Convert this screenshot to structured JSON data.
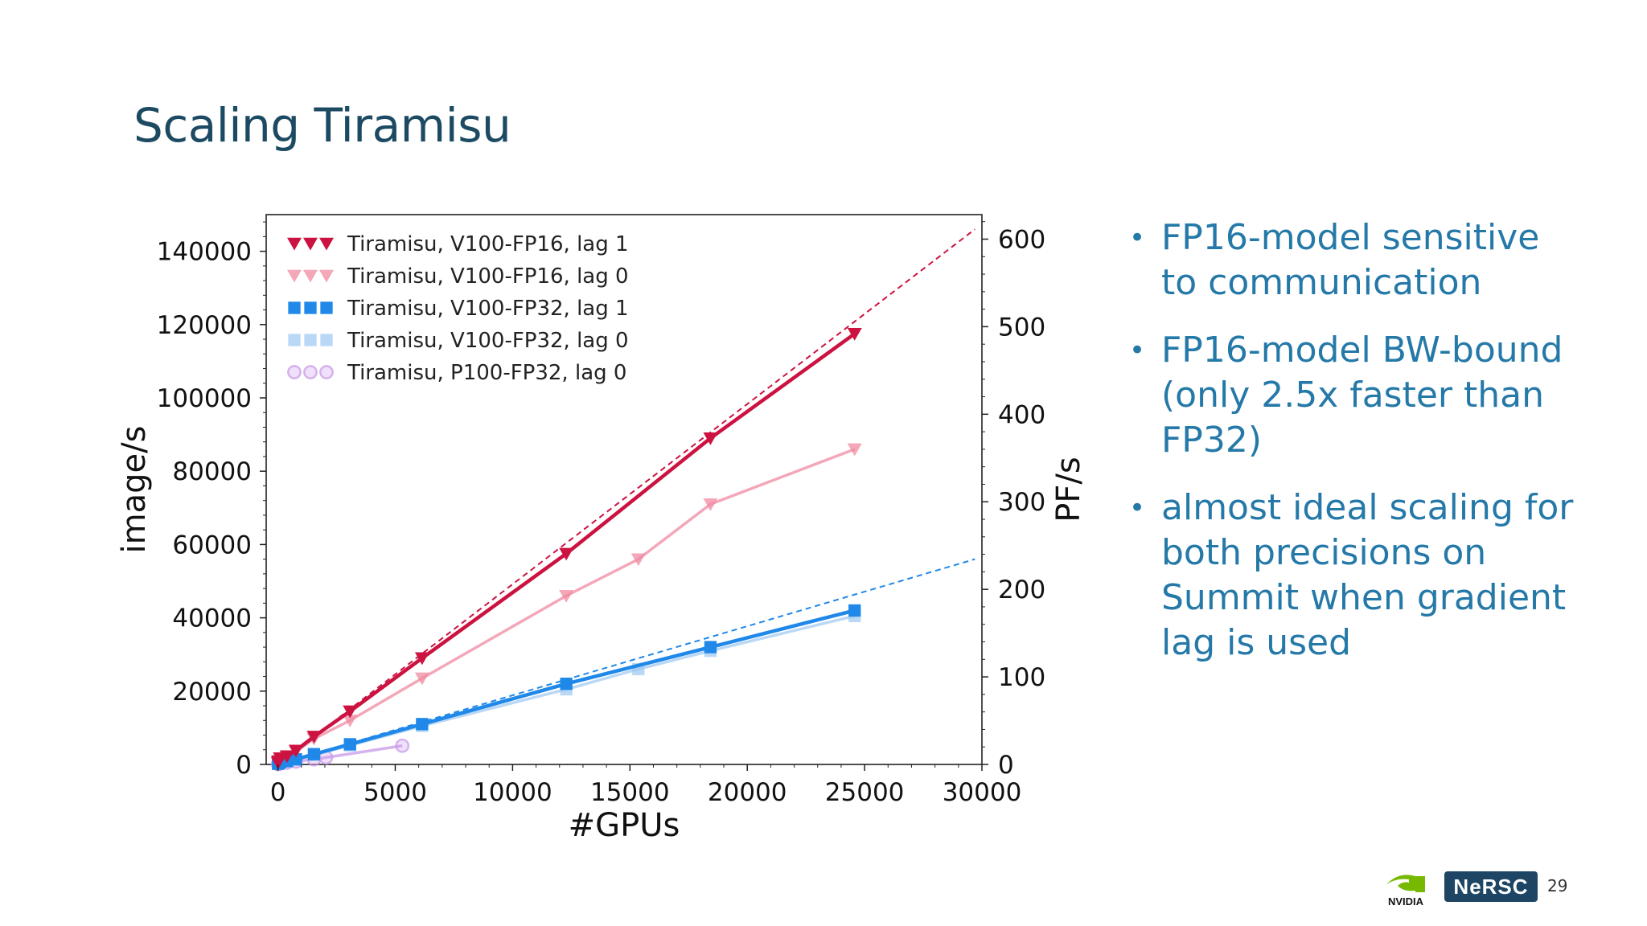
{
  "slide": {
    "title": "Scaling Tiramisu",
    "bullets": [
      "FP16-model sensitive to communication",
      "FP16-model BW-bound (only 2.5x faster than FP32)",
      "almost ideal scaling for both precisions on Summit when gradient lag is used"
    ],
    "page_number": "29",
    "logos": {
      "nvidia": "NVIDIA",
      "nersc": "NeRSC"
    }
  },
  "chart_data": {
    "type": "line",
    "xlabel": "#GPUs",
    "ylabel": "image/s",
    "y2label": "PF/s",
    "xlim": [
      -500,
      30000
    ],
    "ylim": [
      0,
      150000
    ],
    "y2lim": [
      0,
      628
    ],
    "xticks": [
      0,
      5000,
      10000,
      15000,
      20000,
      25000,
      30000
    ],
    "yticks": [
      0,
      20000,
      40000,
      60000,
      80000,
      100000,
      120000,
      140000
    ],
    "y2ticks": [
      0,
      100,
      200,
      300,
      400,
      500,
      600
    ],
    "legend_position": "top-left",
    "grid": false,
    "series": [
      {
        "name": "Tiramisu, V100-FP16, lag 1",
        "color": "#cc1240",
        "marker": "triangle-down",
        "opacity": 1,
        "x": [
          6,
          24,
          96,
          384,
          768,
          1536,
          3072,
          6144,
          12288,
          18432,
          24576
        ],
        "y": [
          480,
          900,
          1700,
          2250,
          3800,
          7600,
          14500,
          29000,
          57500,
          89000,
          117500
        ]
      },
      {
        "name": "Tiramisu, V100-FP16, lag 0",
        "color": "#f08aa0",
        "marker": "triangle-down",
        "opacity": 0.75,
        "x": [
          6,
          24,
          96,
          384,
          768,
          1536,
          3072,
          6144,
          12288,
          15360,
          18432,
          24576
        ],
        "y": [
          450,
          850,
          1600,
          2100,
          3500,
          7000,
          12000,
          23500,
          46000,
          56000,
          71000,
          86000
        ]
      },
      {
        "name": "Tiramisu, V100-FP32, lag 1",
        "color": "#1f88e8",
        "marker": "square",
        "opacity": 1,
        "x": [
          6,
          24,
          96,
          384,
          768,
          1536,
          3072,
          6144,
          12288,
          18432,
          24576
        ],
        "y": [
          180,
          380,
          680,
          900,
          1400,
          2800,
          5500,
          11000,
          22000,
          32000,
          42000
        ]
      },
      {
        "name": "Tiramisu, V100-FP32, lag 0",
        "color": "#9cc8f2",
        "marker": "square",
        "opacity": 0.7,
        "x": [
          6,
          24,
          96,
          384,
          768,
          1536,
          3072,
          6144,
          12288,
          15360,
          18432,
          24576
        ],
        "y": [
          170,
          360,
          650,
          850,
          1300,
          2600,
          5200,
          10500,
          20500,
          26000,
          31000,
          40500
        ]
      },
      {
        "name": "Tiramisu, P100-FP32, lag 0",
        "color": "#c898e8",
        "marker": "circle",
        "opacity": 0.75,
        "x": [
          6,
          24,
          96,
          384,
          768,
          1536,
          2048,
          5300
        ],
        "y": [
          90,
          180,
          300,
          500,
          800,
          1400,
          1900,
          5100
        ]
      }
    ],
    "ideal_lines": [
      {
        "color": "#cc1240",
        "x": [
          0,
          29700
        ],
        "y": [
          0,
          146000
        ]
      },
      {
        "color": "#1f88e8",
        "x": [
          0,
          29700
        ],
        "y": [
          0,
          56000
        ]
      }
    ]
  }
}
